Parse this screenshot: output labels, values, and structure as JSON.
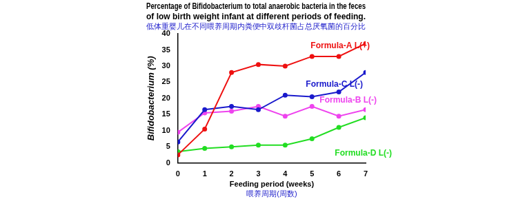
{
  "chart_data": {
    "type": "line",
    "title": [
      "Percentage of Bifidobacterium to total anaerobic bacteria in the feces",
      "of low birth weight infant at different periods of feeding."
    ],
    "subtitle": "低体重婴儿在不同喂养周期内粪便中双歧杆菌占总厌氧菌的百分比",
    "xlabel": "Feeding period (weeks)",
    "xlabel_subtitle": "喂养周期(周数)",
    "ylabel": "Bifidobacterium (%)",
    "x": [
      0,
      1,
      2,
      3,
      4,
      5,
      6,
      7
    ],
    "series": [
      {
        "name": "Formula-A L(+)",
        "color": "#ee1111",
        "values": [
          2.5,
          10.5,
          28,
          30.5,
          30,
          33,
          33,
          37
        ]
      },
      {
        "name": "Formula-C L(-)",
        "color": "#1a1acc",
        "values": [
          6.5,
          16.5,
          17.5,
          16.5,
          21,
          20.5,
          22,
          28
        ]
      },
      {
        "name": "Formula-B L(-)",
        "color": "#ee44ee",
        "values": [
          9.5,
          15.5,
          16,
          17.5,
          14.5,
          17.5,
          14.5,
          16.5
        ]
      },
      {
        "name": "Formula-D L(-)",
        "color": "#22dd22",
        "values": [
          3.5,
          4.5,
          5,
          5.5,
          5.5,
          7.5,
          11,
          14
        ]
      }
    ],
    "xlim": [
      0,
      7
    ],
    "xticks": [
      0,
      1,
      2,
      3,
      4,
      5,
      6,
      7
    ],
    "ylim": [
      0,
      40
    ],
    "yticks": [
      0,
      5,
      10,
      15,
      20,
      25,
      30,
      35,
      40
    ],
    "grid": false,
    "marker": "circle",
    "line_style": "solid"
  }
}
